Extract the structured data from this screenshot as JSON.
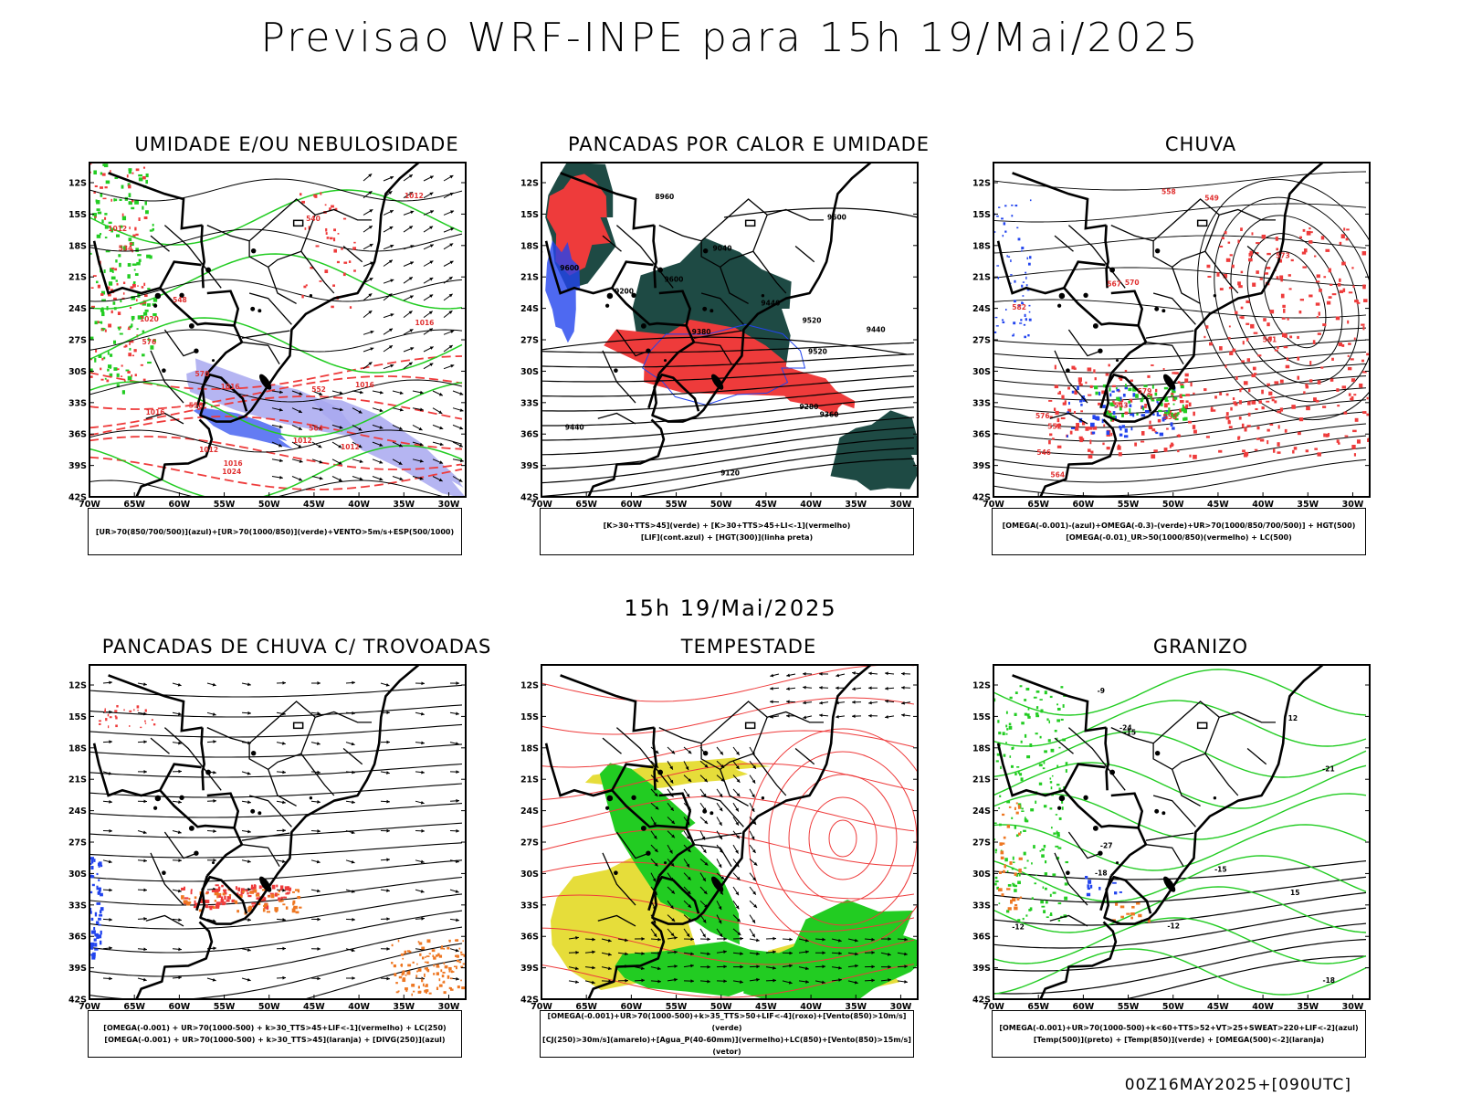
{
  "title": "Previsao WRF-INPE  para 15h 19/Mai/2025",
  "middle_title": "15h 19/Mai/2025",
  "footer": "00Z16MAY2025+[090UTC]",
  "lat_labels": [
    "12S",
    "15S",
    "18S",
    "21S",
    "24S",
    "27S",
    "30S",
    "33S",
    "36S",
    "39S",
    "42S"
  ],
  "lon_labels": [
    "70W",
    "65W",
    "60W",
    "55W",
    "50W",
    "45W",
    "40W",
    "35W",
    "30W"
  ],
  "panels": [
    {
      "title": "UMIDADE E/OU NEBULOSIDADE",
      "legend": [
        "[UR>70(850/700/500)](azul)+[UR>70(1000/850)](verde)+VENTO>5m/s+ESP(500/1000)"
      ],
      "contour_labels": [
        "1012",
        "1012",
        "1012",
        "1012",
        "1016",
        "1016",
        "1020",
        "1024",
        "1016",
        "1016",
        "1016",
        "1012",
        "552",
        "548",
        "540",
        "534",
        "558",
        "564",
        "570",
        "576"
      ]
    },
    {
      "title": "PANCADAS POR CALOR E UMIDADE",
      "legend": [
        "[K>30+TTS>45](verde) + [K>30+TTS>45+LI<-1](vermelho)",
        "[LIF](cont.azul) + [HGT(300)](linha preta)"
      ],
      "contour_labels": [
        "9600",
        "9600",
        "9600",
        "9520",
        "9440",
        "9520",
        "9440",
        "9380",
        "9360",
        "9280",
        "9200",
        "9120",
        "9040",
        "8960",
        "9440"
      ]
    },
    {
      "title": "CHUVA",
      "legend": [
        "[OMEGA(-0.001)-(azul)+OMEGA(-0.3)-(verde)+UR>70(1000/850/700/500)] + HGT(500)",
        "[OMEGA(-0.01)_UR>50(1000/850)(vermelho) + LC(500)"
      ],
      "contour_labels": [
        "582",
        "576",
        "570",
        "573",
        "567",
        "564",
        "561",
        "558",
        "555",
        "552",
        "549",
        "546",
        "543",
        "579"
      ]
    },
    {
      "title": "PANCADAS DE CHUVA C/ TROVOADAS",
      "legend": [
        "[OMEGA(-0.001) + UR>70(1000-500) + k>30_TTS>45+LIF<-1](vermelho) + LC(250)",
        "[OMEGA(-0.001) + UR>70(1000-500) + k>30_TTS>45](laranja) + [DIVG(250)](azul)"
      ],
      "contour_labels": []
    },
    {
      "title": "TEMPESTADE",
      "legend": [
        "[OMEGA(-0.001)+UR>70(1000-500)+k>35_TTS>50+LIF<-4](roxo)+[Vento(850)>10m/s](verde)",
        "[CJ(250)>30m/s](amarelo)+[Agua_P(40-60mm)](vermelho)+LC(850)+[Vento(850)>15m/s](vetor)"
      ],
      "contour_labels": []
    },
    {
      "title": "GRANIZO",
      "legend": [
        "[OMEGA(-0.001)+UR>70(1000-500)+k<60+TTS>52+VT>25+SWEAT>220+LIF<-2](azul)",
        "[Temp(500)](preto) + [Temp(850)](verde) + [OMEGA(500)<-2](laranja)"
      ],
      "contour_labels": [
        "-12",
        "-15",
        "-18",
        "-21",
        "-24",
        "-27",
        "-18",
        "-15",
        "-12",
        "-9",
        "12",
        "15"
      ]
    }
  ],
  "colors": {
    "red": "#ee3b3b",
    "green": "#22cc22",
    "blue": "#2244ee",
    "lightblue": "#a8a8f0",
    "darkgreen": "#1e4a44",
    "yellow": "#e6dd3a",
    "orange": "#ee7722",
    "black": "#000000"
  }
}
